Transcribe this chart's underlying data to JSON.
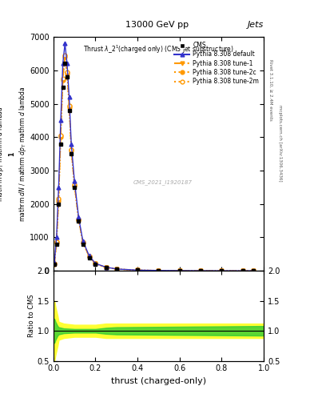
{
  "title": "13000 GeV pp",
  "title_right": "Jets",
  "plot_title": "Thrust $\\lambda\\_2^1$(charged only) (CMS jet substructure)",
  "xlabel": "thrust (charged-only)",
  "ratio_ylabel": "Ratio to CMS",
  "watermark": "CMS_2021_I1920187",
  "rivet_text": "Rivet 3.1.10, ≥ 2.4M events",
  "inspire_text": "mcplots.cern.ch [arXiv:1306.3436]",
  "xlim": [
    0,
    1
  ],
  "ylim_main": [
    0,
    7000
  ],
  "ylim_ratio": [
    0.5,
    2
  ],
  "yticks_main": [
    0,
    1000,
    2000,
    3000,
    4000,
    5000,
    6000,
    7000
  ],
  "ytick_labels_main": [
    "0",
    "1000",
    "2000",
    "3000",
    "4000",
    "5000",
    "6000",
    "7000"
  ],
  "yticks_ratio": [
    0.5,
    1.0,
    1.5,
    2.0
  ],
  "x_data": [
    0.005,
    0.015,
    0.025,
    0.035,
    0.045,
    0.055,
    0.065,
    0.075,
    0.085,
    0.1,
    0.12,
    0.14,
    0.17,
    0.2,
    0.25,
    0.3,
    0.4,
    0.5,
    0.6,
    0.7,
    0.8,
    0.9,
    0.95
  ],
  "cms_data": [
    200,
    800,
    2000,
    3800,
    5500,
    6200,
    5800,
    4800,
    3500,
    2500,
    1500,
    800,
    400,
    200,
    100,
    50,
    20,
    10,
    5,
    3,
    2,
    1,
    1
  ],
  "pythia_default": [
    250,
    1000,
    2500,
    4500,
    6200,
    6800,
    6200,
    5200,
    3800,
    2700,
    1600,
    900,
    450,
    220,
    110,
    55,
    22,
    11,
    6,
    3,
    2,
    1,
    1
  ],
  "pythia_tune1": [
    200,
    850,
    2100,
    4000,
    5700,
    6400,
    5900,
    4900,
    3600,
    2550,
    1520,
    850,
    420,
    210,
    105,
    52,
    21,
    10,
    5,
    3,
    2,
    1,
    1
  ],
  "pythia_tune2c": [
    200,
    850,
    2100,
    4000,
    5700,
    6400,
    5900,
    4900,
    3600,
    2550,
    1520,
    850,
    420,
    210,
    105,
    52,
    21,
    10,
    5,
    3,
    2,
    1,
    1
  ],
  "pythia_tune2m": [
    220,
    870,
    2150,
    4050,
    5750,
    6450,
    5950,
    4950,
    3620,
    2560,
    1530,
    855,
    425,
    212,
    107,
    53,
    21,
    11,
    5,
    3,
    2,
    1,
    1
  ],
  "color_blue": "#3333cc",
  "color_orange": "#ff9900",
  "color_black": "#000000",
  "color_green": "#33cc33",
  "color_yellow": "#ffff33",
  "bg_color": "#ffffff"
}
